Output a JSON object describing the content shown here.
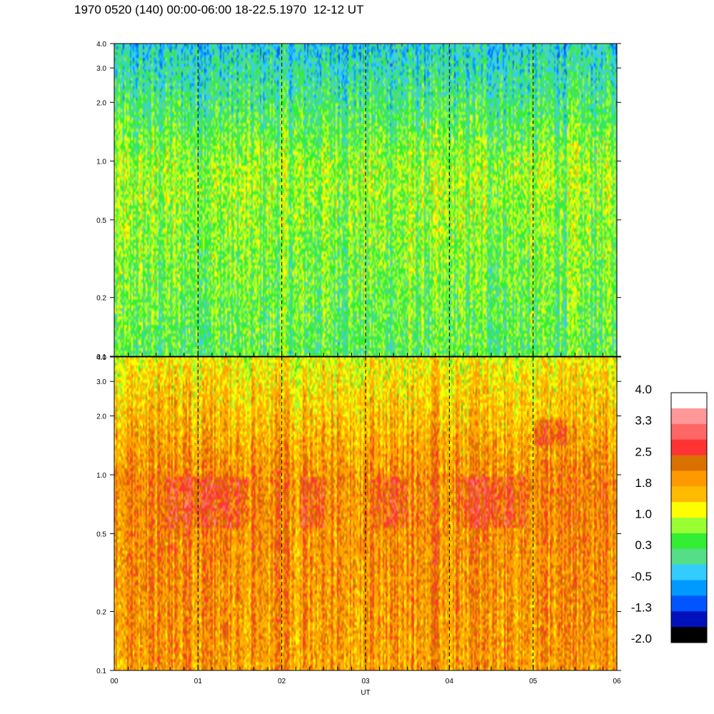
{
  "title": "1970 0520 (140) 00:00-06:00 18-22.5.1970  12-12 UT",
  "chart_data": [
    {
      "type": "heatmap",
      "panel": "upper",
      "xlabel": "",
      "ylabel": "",
      "x_ticks": [
        "00",
        "01",
        "02",
        "03",
        "04",
        "05",
        "06"
      ],
      "x_range_hours": [
        0,
        6
      ],
      "y_ticks": [
        "0.1",
        "0.2",
        "0.5",
        "1.0",
        "2.0",
        "3.0",
        "4.0"
      ],
      "y_range": [
        0.1,
        4.0
      ],
      "y_scale": "log",
      "dashed_gridlines_x_hours": [
        1,
        2,
        3,
        4,
        5
      ],
      "typical_levels": {
        "low_freq": 0.4,
        "mid_freq": 0.8,
        "high_freq": -0.3
      }
    },
    {
      "type": "heatmap",
      "panel": "lower",
      "xlabel": "UT",
      "ylabel": "",
      "x_ticks": [
        "00",
        "01",
        "02",
        "03",
        "04",
        "05",
        "06"
      ],
      "x_range_hours": [
        0,
        6
      ],
      "y_ticks": [
        "0.1",
        "0.2",
        "0.5",
        "1.0",
        "2.0",
        "3.0",
        "4.0"
      ],
      "y_range": [
        0.1,
        4.0
      ],
      "y_scale": "log",
      "dashed_gridlines_x_hours": [
        1,
        2,
        3,
        4,
        5
      ],
      "typical_levels": {
        "low_freq": 1.9,
        "mid_freq": 2.1,
        "high_freq": 1.2
      }
    }
  ],
  "colorbar": {
    "labels": [
      "4.0",
      "3.3",
      "2.5",
      "1.8",
      "1.0",
      "0.3",
      "-0.5",
      "-1.3",
      "-2.0"
    ],
    "colors": [
      "#ffffff",
      "#ff9999",
      "#ff6666",
      "#ff3333",
      "#d97000",
      "#ff9900",
      "#ffbb00",
      "#ffff00",
      "#99ff33",
      "#33ee33",
      "#55dd88",
      "#33ccff",
      "#0099ff",
      "#0055ff",
      "#0011bb",
      "#000000"
    ]
  }
}
